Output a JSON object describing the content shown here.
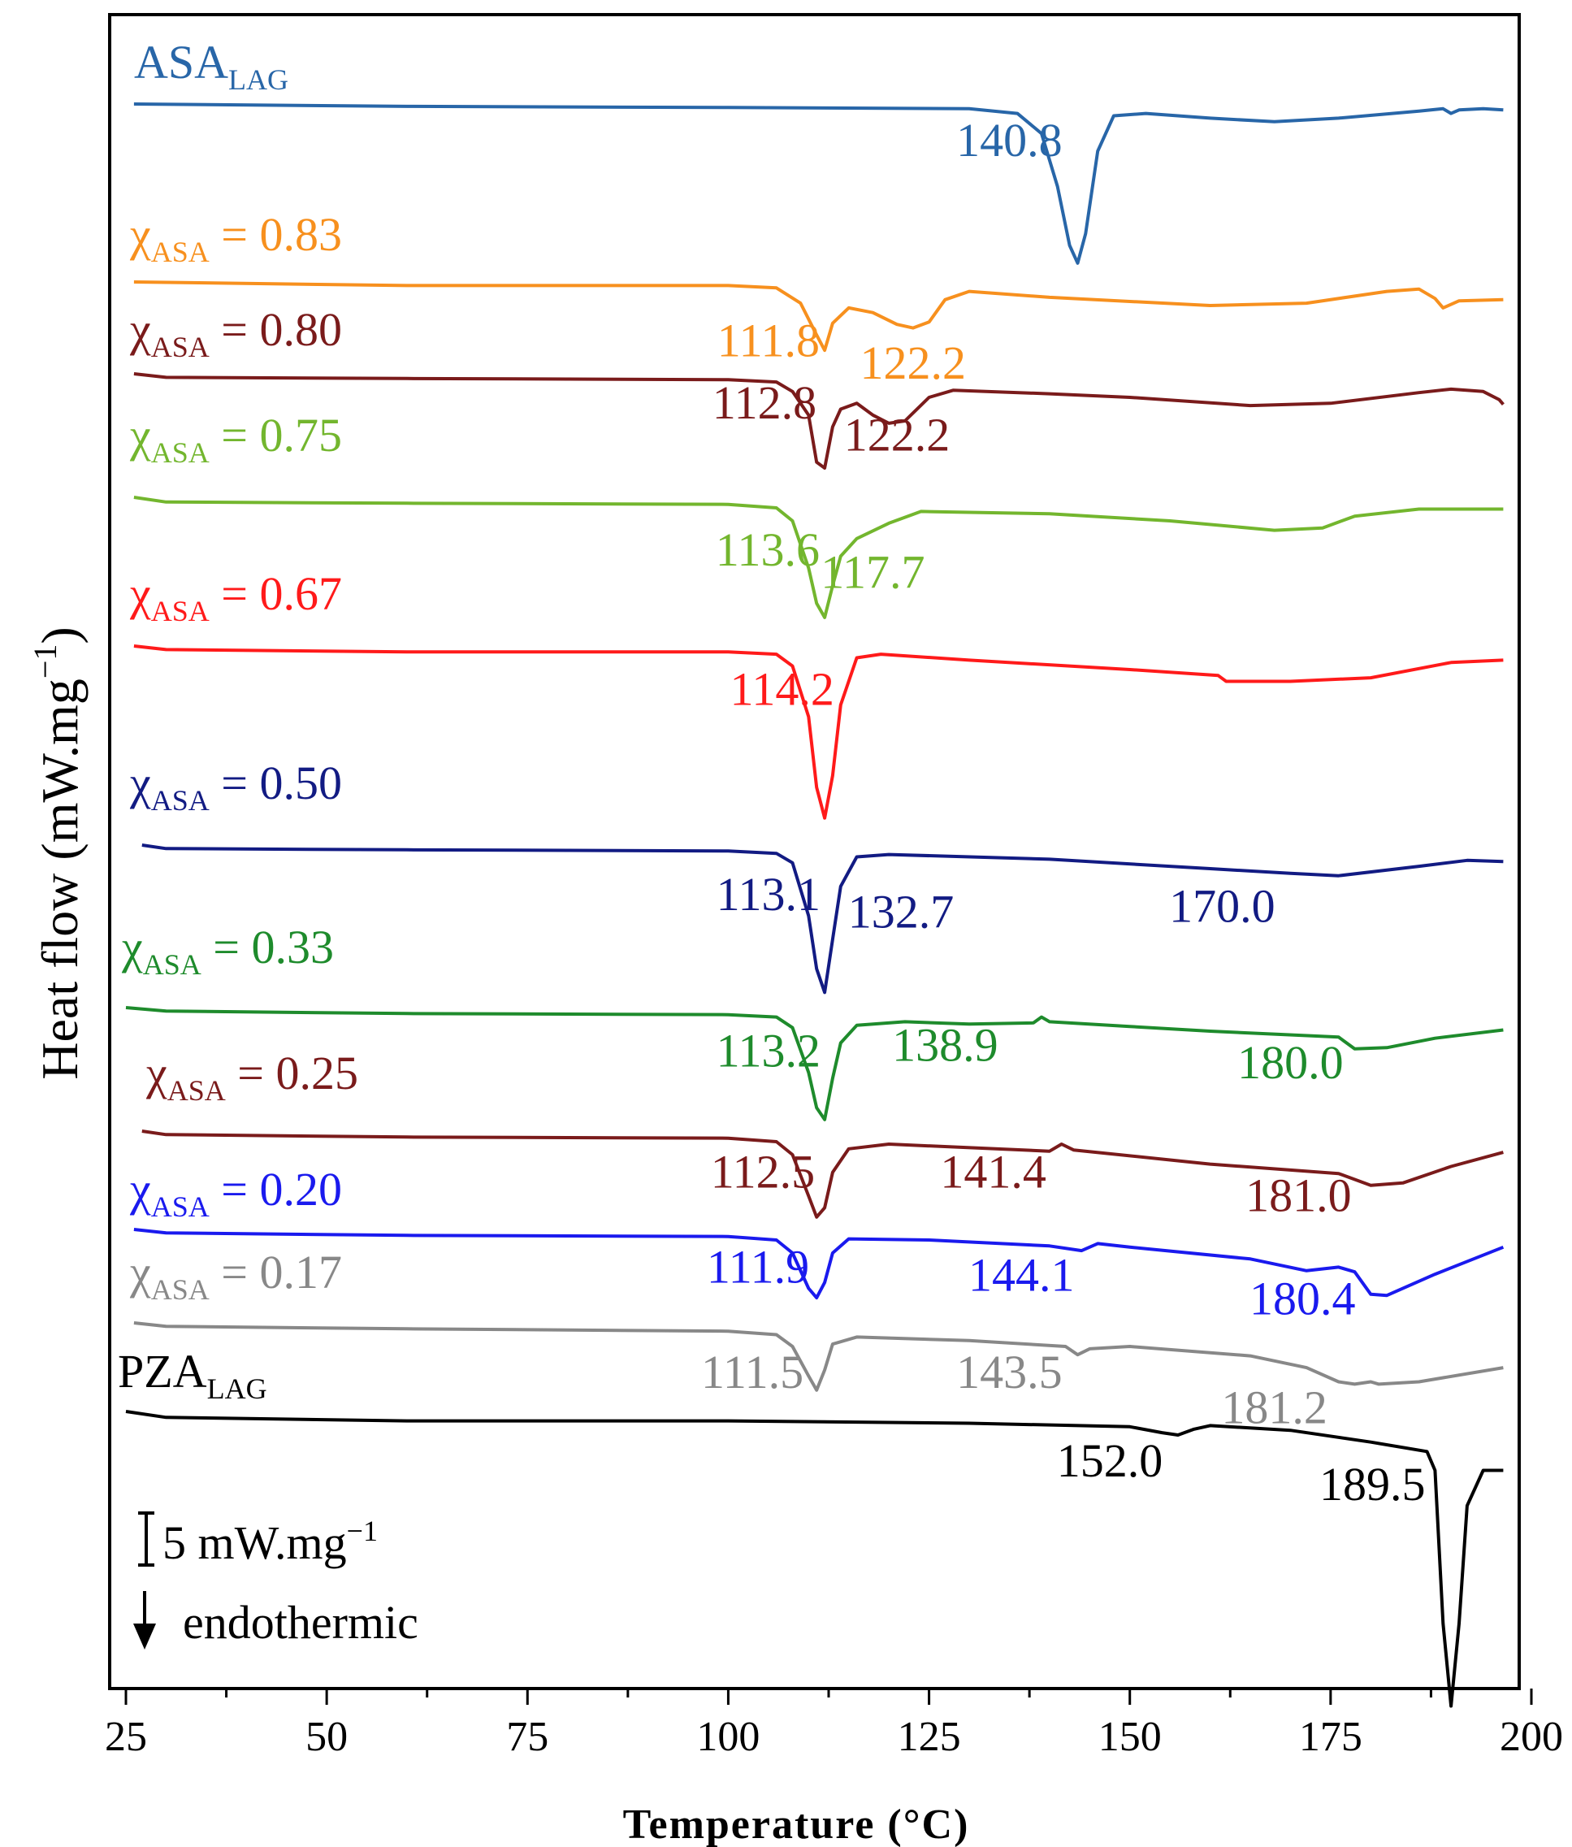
{
  "chart_data": {
    "type": "line",
    "title": "",
    "xlabel": "Temperature (°C)",
    "ylabel": "Heat flow (mW.mg",
    "ylabel_sup": "−1",
    "ylabel_close": ")",
    "xlim": [
      24.5,
      200
    ],
    "x_ticks": [
      25,
      50,
      75,
      100,
      125,
      150,
      175,
      200
    ],
    "x_minor_step": 12.5,
    "y_ticks_shown": false,
    "grid": false,
    "legend": "none (series labels placed above each curve)",
    "scale_bar": {
      "value": "5 mW.mg",
      "sup": "−1"
    },
    "direction_note": "endothermic",
    "series": [
      {
        "prefix": "ASA",
        "sub": "LAG",
        "rest": "",
        "color": "#2866a8",
        "points": [
          [
            26,
            0
          ],
          [
            60,
            -0.2
          ],
          [
            100,
            -0.3
          ],
          [
            130,
            -0.4
          ],
          [
            136,
            -0.8
          ],
          [
            139,
            -2.5
          ],
          [
            141,
            -7
          ],
          [
            142.5,
            -12
          ],
          [
            143.5,
            -13.5
          ],
          [
            144.5,
            -11
          ],
          [
            146,
            -4
          ],
          [
            148,
            -1
          ],
          [
            152,
            -0.8
          ],
          [
            160,
            -1.2
          ],
          [
            168,
            -1.5
          ],
          [
            176,
            -1.2
          ],
          [
            186,
            -0.6
          ],
          [
            189,
            -0.4
          ],
          [
            190,
            -0.8
          ],
          [
            191,
            -0.5
          ],
          [
            194,
            -0.4
          ],
          [
            196.5,
            -0.5
          ]
        ],
        "labels": [
          {
            "text": "140.8",
            "x": 135.0,
            "y": -4.4
          }
        ]
      },
      {
        "prefix": "χ",
        "sub": "ASA",
        "rest": " = 0.83",
        "color": "#f7901e",
        "points": [
          [
            26,
            0
          ],
          [
            60,
            -0.3
          ],
          [
            100,
            -0.3
          ],
          [
            106,
            -0.5
          ],
          [
            109,
            -1.8
          ],
          [
            111,
            -4.5
          ],
          [
            112,
            -5.8
          ],
          [
            113,
            -3.5
          ],
          [
            115,
            -2.2
          ],
          [
            118,
            -2.6
          ],
          [
            121,
            -3.6
          ],
          [
            123,
            -3.9
          ],
          [
            125,
            -3.4
          ],
          [
            127,
            -1.5
          ],
          [
            130,
            -0.8
          ],
          [
            140,
            -1.3
          ],
          [
            160,
            -2.0
          ],
          [
            172,
            -1.8
          ],
          [
            182,
            -0.8
          ],
          [
            186,
            -0.6
          ],
          [
            188,
            -1.4
          ],
          [
            189,
            -2.2
          ],
          [
            191,
            -1.6
          ],
          [
            196.5,
            -1.5
          ]
        ],
        "labels": [
          {
            "text": "111.8",
            "x": 105.0,
            "y": -6.3
          },
          {
            "text": "122.2",
            "x": 123.0,
            "y": -8.2
          }
        ]
      },
      {
        "prefix": "χ",
        "sub": "ASA",
        "rest": " = 0.80",
        "color": "#7a1b1b",
        "points": [
          [
            26,
            0
          ],
          [
            30,
            -0.3
          ],
          [
            60,
            -0.4
          ],
          [
            100,
            -0.5
          ],
          [
            106,
            -0.7
          ],
          [
            108,
            -1.5
          ],
          [
            110,
            -3.5
          ],
          [
            111,
            -7.5
          ],
          [
            112,
            -8.0
          ],
          [
            113,
            -4.5
          ],
          [
            114,
            -3.0
          ],
          [
            116,
            -2.5
          ],
          [
            118,
            -3.5
          ],
          [
            120,
            -4.2
          ],
          [
            122,
            -4.0
          ],
          [
            125,
            -2.0
          ],
          [
            128,
            -1.4
          ],
          [
            140,
            -1.7
          ],
          [
            150,
            -2.0
          ],
          [
            165,
            -2.7
          ],
          [
            175,
            -2.5
          ],
          [
            186,
            -1.6
          ],
          [
            190,
            -1.3
          ],
          [
            194,
            -1.5
          ],
          [
            196,
            -2.2
          ],
          [
            196.5,
            -2.6
          ]
        ],
        "labels": [
          {
            "text": "112.8",
            "x": 104.5,
            "y": -3.8
          },
          {
            "text": "122.2",
            "x": 121.0,
            "y": -6.5
          }
        ]
      },
      {
        "prefix": "χ",
        "sub": "ASA",
        "rest": " = 0.75",
        "color": "#73b62e",
        "points": [
          [
            26,
            0
          ],
          [
            30,
            -0.4
          ],
          [
            60,
            -0.5
          ],
          [
            100,
            -0.6
          ],
          [
            106,
            -0.9
          ],
          [
            108,
            -2.0
          ],
          [
            110,
            -6.0
          ],
          [
            111,
            -9.0
          ],
          [
            112,
            -10.2
          ],
          [
            113,
            -7.5
          ],
          [
            114,
            -5.0
          ],
          [
            116,
            -3.5
          ],
          [
            120,
            -2.2
          ],
          [
            124,
            -1.2
          ],
          [
            140,
            -1.4
          ],
          [
            155,
            -2.0
          ],
          [
            168,
            -2.8
          ],
          [
            174,
            -2.6
          ],
          [
            178,
            -1.6
          ],
          [
            186,
            -1.0
          ],
          [
            196.5,
            -1.0
          ]
        ],
        "labels": [
          {
            "text": "113.6",
            "x": 104.9,
            "y": -5.8
          },
          {
            "text": "117.7",
            "x": 118.0,
            "y": -7.7
          }
        ]
      },
      {
        "prefix": "χ",
        "sub": "ASA",
        "rest": " = 0.67",
        "color": "#ff1a1a",
        "points": [
          [
            26,
            0
          ],
          [
            30,
            -0.3
          ],
          [
            60,
            -0.5
          ],
          [
            100,
            -0.5
          ],
          [
            106,
            -0.7
          ],
          [
            108,
            -1.7
          ],
          [
            110,
            -6.0
          ],
          [
            111,
            -12.0
          ],
          [
            112,
            -14.6
          ],
          [
            113,
            -11.0
          ],
          [
            114,
            -5.0
          ],
          [
            116,
            -1.0
          ],
          [
            119,
            -0.7
          ],
          [
            130,
            -1.2
          ],
          [
            150,
            -2.0
          ],
          [
            161,
            -2.5
          ],
          [
            162,
            -3.0
          ],
          [
            170,
            -3.0
          ],
          [
            180,
            -2.7
          ],
          [
            190,
            -1.4
          ],
          [
            196.5,
            -1.2
          ]
        ],
        "labels": [
          {
            "text": "114.2",
            "x": 106.7,
            "y": -5.0
          }
        ]
      },
      {
        "prefix": "χ",
        "sub": "ASA",
        "rest": " = 0.50",
        "color": "#121b83",
        "points": [
          [
            27,
            0
          ],
          [
            30,
            -0.3
          ],
          [
            60,
            -0.4
          ],
          [
            100,
            -0.5
          ],
          [
            106,
            -0.7
          ],
          [
            108,
            -1.5
          ],
          [
            110,
            -6.0
          ],
          [
            111,
            -10.5
          ],
          [
            112,
            -12.5
          ],
          [
            113,
            -8.0
          ],
          [
            114,
            -3.5
          ],
          [
            116,
            -1.0
          ],
          [
            120,
            -0.8
          ],
          [
            140,
            -1.2
          ],
          [
            160,
            -2.0
          ],
          [
            170,
            -2.4
          ],
          [
            176,
            -2.6
          ],
          [
            186,
            -1.8
          ],
          [
            192,
            -1.3
          ],
          [
            196.5,
            -1.4
          ]
        ],
        "labels": [
          {
            "text": "113.1",
            "x": 105.0,
            "y": -5.5
          },
          {
            "text": "132.7",
            "x": 121.5,
            "y": -7.0
          },
          {
            "text": "170.0",
            "x": 161.5,
            "y": -6.5
          }
        ]
      },
      {
        "prefix": "χ",
        "sub": "ASA",
        "rest": " = 0.33",
        "color": "#1e8b2c",
        "points": [
          [
            25,
            0
          ],
          [
            30,
            -0.3
          ],
          [
            60,
            -0.5
          ],
          [
            100,
            -0.6
          ],
          [
            106,
            -0.8
          ],
          [
            108,
            -1.7
          ],
          [
            110,
            -5.5
          ],
          [
            111,
            -8.5
          ],
          [
            112,
            -9.5
          ],
          [
            113,
            -6.0
          ],
          [
            114,
            -3.0
          ],
          [
            116,
            -1.5
          ],
          [
            122,
            -1.2
          ],
          [
            130,
            -1.4
          ],
          [
            138,
            -1.3
          ],
          [
            139,
            -0.8
          ],
          [
            140,
            -1.2
          ],
          [
            150,
            -1.6
          ],
          [
            160,
            -2.0
          ],
          [
            176,
            -2.5
          ],
          [
            178,
            -3.5
          ],
          [
            182,
            -3.4
          ],
          [
            188,
            -2.6
          ],
          [
            196.5,
            -1.9
          ]
        ],
        "labels": [
          {
            "text": "113.2",
            "x": 105.0,
            "y": -5.0
          },
          {
            "text": "138.9",
            "x": 127.0,
            "y": -4.5
          },
          {
            "text": "180.0",
            "x": 170.0,
            "y": -6.0
          }
        ]
      },
      {
        "prefix": "χ",
        "sub": "ASA",
        "rest": " = 0.25",
        "color": "#7a1b1b",
        "points": [
          [
            27,
            0
          ],
          [
            30,
            -0.3
          ],
          [
            60,
            -0.5
          ],
          [
            100,
            -0.6
          ],
          [
            106,
            -0.9
          ],
          [
            108,
            -2.0
          ],
          [
            110,
            -5.5
          ],
          [
            111,
            -7.3
          ],
          [
            112,
            -6.5
          ],
          [
            113,
            -3.5
          ],
          [
            115,
            -1.5
          ],
          [
            120,
            -1.1
          ],
          [
            140,
            -1.7
          ],
          [
            141.5,
            -1.1
          ],
          [
            143,
            -1.6
          ],
          [
            160,
            -2.8
          ],
          [
            176,
            -3.6
          ],
          [
            180,
            -4.6
          ],
          [
            184,
            -4.4
          ],
          [
            190,
            -3.0
          ],
          [
            196.5,
            -1.8
          ]
        ],
        "labels": [
          {
            "text": "112.5",
            "x": 104.3,
            "y": -4.8
          },
          {
            "text": "141.4",
            "x": 133.0,
            "y": -4.8
          },
          {
            "text": "181.0",
            "x": 171.0,
            "y": -6.8
          }
        ]
      },
      {
        "prefix": "χ",
        "sub": "ASA",
        "rest": " = 0.20",
        "color": "#1a1aee",
        "points": [
          [
            26,
            0
          ],
          [
            30,
            -0.3
          ],
          [
            60,
            -0.5
          ],
          [
            100,
            -0.6
          ],
          [
            106,
            -0.9
          ],
          [
            108,
            -2.0
          ],
          [
            110,
            -5.0
          ],
          [
            111,
            -5.8
          ],
          [
            112,
            -4.5
          ],
          [
            113,
            -2.0
          ],
          [
            115,
            -0.8
          ],
          [
            125,
            -0.9
          ],
          [
            140,
            -1.4
          ],
          [
            144,
            -1.8
          ],
          [
            146,
            -1.2
          ],
          [
            150,
            -1.5
          ],
          [
            165,
            -2.5
          ],
          [
            172,
            -3.5
          ],
          [
            176,
            -3.2
          ],
          [
            178,
            -3.6
          ],
          [
            180,
            -5.5
          ],
          [
            182,
            -5.6
          ],
          [
            188,
            -3.8
          ],
          [
            196.5,
            -1.5
          ]
        ],
        "labels": [
          {
            "text": "111.9",
            "x": 103.7,
            "y": -4.5
          },
          {
            "text": "144.1",
            "x": 136.5,
            "y": -5.2
          },
          {
            "text": "180.4",
            "x": 171.5,
            "y": -7.2
          }
        ]
      },
      {
        "prefix": "χ",
        "sub": "ASA",
        "rest": " = 0.17",
        "color": "#888888",
        "points": [
          [
            26,
            0
          ],
          [
            30,
            -0.3
          ],
          [
            60,
            -0.5
          ],
          [
            100,
            -0.7
          ],
          [
            106,
            -1.0
          ],
          [
            108,
            -2.0
          ],
          [
            110,
            -4.5
          ],
          [
            111,
            -5.7
          ],
          [
            112,
            -4.0
          ],
          [
            113,
            -1.8
          ],
          [
            116,
            -1.2
          ],
          [
            130,
            -1.5
          ],
          [
            142,
            -2.0
          ],
          [
            143.5,
            -2.7
          ],
          [
            145,
            -2.2
          ],
          [
            150,
            -2.0
          ],
          [
            165,
            -2.8
          ],
          [
            172,
            -3.8
          ],
          [
            176,
            -5.0
          ],
          [
            178,
            -5.2
          ],
          [
            180,
            -5.0
          ],
          [
            181,
            -5.2
          ],
          [
            186,
            -5.0
          ],
          [
            196.5,
            -3.8
          ]
        ],
        "labels": [
          {
            "text": "111.5",
            "x": 103.0,
            "y": -5.5
          },
          {
            "text": "143.5",
            "x": 135.0,
            "y": -5.5
          },
          {
            "text": "181.2",
            "x": 168.0,
            "y": -8.5
          }
        ]
      },
      {
        "prefix": "PZA",
        "sub": "LAG",
        "rest": "",
        "color": "#000000",
        "points": [
          [
            25,
            0
          ],
          [
            30,
            -0.5
          ],
          [
            60,
            -0.8
          ],
          [
            100,
            -0.8
          ],
          [
            130,
            -1.0
          ],
          [
            150,
            -1.3
          ],
          [
            154,
            -1.8
          ],
          [
            156,
            -2.0
          ],
          [
            158,
            -1.5
          ],
          [
            160,
            -1.2
          ],
          [
            170,
            -1.6
          ],
          [
            180,
            -2.6
          ],
          [
            187,
            -3.4
          ],
          [
            188,
            -5.0
          ],
          [
            189,
            -18.0
          ],
          [
            190,
            -25.0
          ],
          [
            191,
            -18.0
          ],
          [
            192,
            -8.0
          ],
          [
            194,
            -5.0
          ],
          [
            196.5,
            -5.0
          ]
        ],
        "labels": [
          {
            "text": "152.0",
            "x": 147.5,
            "y": -5.5
          },
          {
            "text": "189.5",
            "x": 180.2,
            "y": -7.5
          }
        ]
      }
    ]
  }
}
